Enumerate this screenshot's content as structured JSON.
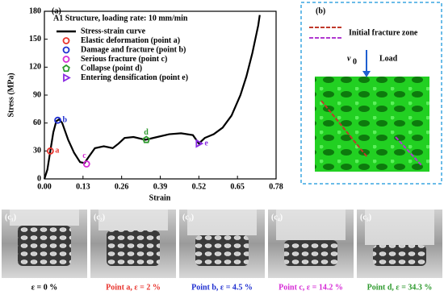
{
  "chart_data": {
    "type": "line",
    "panel_label": "(a)",
    "title": "A1 Structure, loading rate: 10 mm/min",
    "xlabel": "Strain",
    "ylabel": "Stress (MPa)",
    "xlim": [
      0,
      0.78
    ],
    "ylim": [
      0,
      180
    ],
    "xticks": [
      {
        "value": 0,
        "label": "0.00"
      },
      0.13,
      0.26,
      0.39,
      0.52,
      0.65,
      0.78
    ],
    "yticks": [
      0,
      30,
      60,
      90,
      120,
      150,
      180
    ],
    "series": [
      {
        "name": "Stress-strain curve",
        "color": "#000000",
        "x": [
          0,
          0.01,
          0.02,
          0.03,
          0.04,
          0.05,
          0.06,
          0.08,
          0.1,
          0.12,
          0.135,
          0.15,
          0.17,
          0.2,
          0.23,
          0.25,
          0.27,
          0.3,
          0.34,
          0.38,
          0.42,
          0.46,
          0.5,
          0.52,
          0.54,
          0.57,
          0.6,
          0.63,
          0.66,
          0.68,
          0.7,
          0.71,
          0.72,
          0.725
        ],
        "values": [
          0,
          10,
          30,
          50,
          62,
          64,
          60,
          42,
          28,
          18,
          17,
          24,
          33,
          35,
          33,
          38,
          44,
          45,
          42,
          45,
          48,
          49,
          47,
          38,
          44,
          48,
          55,
          68,
          90,
          110,
          135,
          150,
          165,
          176
        ]
      }
    ],
    "points": [
      {
        "name": "Elastic deformation (point a)",
        "label": "a",
        "color": "#e8322b",
        "marker": "circle",
        "x": 0.02,
        "y": 30
      },
      {
        "name": "Damage and fracture (point b)",
        "label": "b",
        "color": "#1f2fd0",
        "marker": "circle",
        "x": 0.045,
        "y": 63
      },
      {
        "name": "Serious fracture (point c)",
        "label": "c",
        "color": "#d62bd6",
        "marker": "circle",
        "x": 0.142,
        "y": 16
      },
      {
        "name": "Collapse (point d)",
        "label": "d",
        "color": "#2e9a2e",
        "marker": "pentagon",
        "x": 0.343,
        "y": 42
      },
      {
        "name": "Entering densification (point e)",
        "label": "e",
        "color": "#8a2be2",
        "marker": "triangle",
        "x": 0.52,
        "y": 38
      }
    ]
  },
  "panel_b": {
    "label": "(b)",
    "legend": "Initial fracture zone",
    "velocity": "v",
    "velocity_sub": "0",
    "load": "Load"
  },
  "photos": [
    {
      "label": "(c₁)",
      "caption": "ε = 0 %",
      "color": "#000000"
    },
    {
      "label": "(c₂)",
      "caption": "Point a, ε = 2 %",
      "color": "#e8322b"
    },
    {
      "label": "(c₃)",
      "caption": "Point b, ε = 4.5 %",
      "color": "#1f2fd0"
    },
    {
      "label": "(c₄)",
      "caption": "Point c, ε = 14.2 %",
      "color": "#d62bd6"
    },
    {
      "label": "(c₅)",
      "caption": "Point d, ε = 34.3 %",
      "color": "#2e9a2e"
    }
  ]
}
